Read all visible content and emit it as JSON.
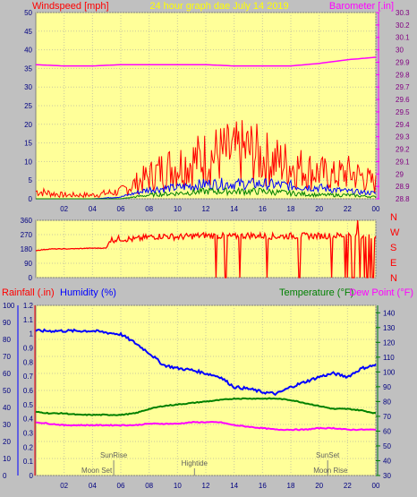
{
  "chart_data": [
    {
      "type": "line",
      "title": "24 hour graph dae   July 14 2019",
      "left_axis_label": "Windspeed [mph]",
      "right_axis_label": "Barometer [.in]",
      "x_tick_labels": [
        "02",
        "04",
        "06",
        "08",
        "10",
        "12",
        "14",
        "16",
        "18",
        "20",
        "22",
        "00"
      ],
      "x_tick_hours": [
        2,
        4,
        6,
        8,
        10,
        12,
        14,
        16,
        18,
        20,
        22,
        24
      ],
      "xlim": [
        0,
        24
      ],
      "ylim_left": [
        0,
        50
      ],
      "ylim_right": [
        28.8,
        30.3
      ],
      "y_left_ticks": [
        0,
        5,
        10,
        15,
        20,
        25,
        30,
        35,
        40,
        45,
        50
      ],
      "y_right_ticks": [
        "28.8",
        "28.9",
        "29",
        "29.1",
        "29.2",
        "29.3",
        "29.4",
        "29.5",
        "29.6",
        "29.7",
        "29.8",
        "29.9",
        "30",
        "30.1",
        "30.2",
        "30.3"
      ],
      "grid": true,
      "colors": {
        "gust": "#ff0000",
        "average": "#0000ff",
        "low": "#008000",
        "barometer": "#ff00ff"
      },
      "series": [
        {
          "key": "barometer",
          "axis": "right",
          "color": "#ff00ff",
          "x": [
            0,
            2,
            4,
            6,
            8,
            10,
            12,
            14,
            16,
            18,
            20,
            22,
            24
          ],
          "values": [
            29.88,
            29.87,
            29.87,
            29.88,
            29.88,
            29.88,
            29.88,
            29.87,
            29.87,
            29.87,
            29.89,
            29.92,
            29.94
          ]
        },
        {
          "key": "gust",
          "axis": "left",
          "color": "#ff0000",
          "x": [
            0,
            2,
            4,
            6,
            7,
            8,
            9,
            10,
            11,
            12,
            13,
            14,
            15,
            16,
            17,
            18,
            19,
            20,
            21,
            22,
            23,
            24
          ],
          "values": [
            2,
            1,
            1,
            2,
            4,
            6,
            8,
            9,
            10,
            11,
            12,
            12,
            13,
            11,
            10,
            9,
            8,
            7,
            6,
            7,
            6,
            4
          ]
        },
        {
          "key": "average",
          "axis": "left",
          "color": "#0000ff",
          "x": [
            0,
            2,
            4,
            6,
            7,
            8,
            10,
            12,
            14,
            16,
            18,
            20,
            22,
            24
          ],
          "values": [
            0,
            0,
            0,
            0.5,
            1.5,
            2.5,
            3,
            4,
            4,
            4,
            3.5,
            3,
            2,
            1.5
          ]
        },
        {
          "key": "low",
          "axis": "left",
          "color": "#008000",
          "x": [
            0,
            2,
            4,
            6,
            7,
            8,
            10,
            12,
            14,
            16,
            18,
            20,
            22,
            24
          ],
          "values": [
            0,
            0,
            0,
            0,
            0.5,
            1,
            1.5,
            2,
            2,
            2,
            1.5,
            1,
            1,
            0.5
          ]
        }
      ]
    },
    {
      "type": "line",
      "title": "",
      "y_left_ticks": [
        0,
        90,
        180,
        270,
        360
      ],
      "ylim": [
        0,
        360
      ],
      "compass_labels": [
        "N",
        "W",
        "S",
        "E",
        "N"
      ],
      "xlim": [
        0,
        24
      ],
      "series": [
        {
          "key": "wind_direction",
          "color": "#ff0000",
          "x": [
            0,
            1,
            2,
            3,
            4,
            5,
            5.2,
            6,
            7,
            8,
            9,
            10,
            11,
            12,
            13,
            14,
            15,
            16,
            17,
            18,
            19,
            20,
            21,
            22,
            23,
            24
          ],
          "values": [
            170,
            180,
            180,
            182,
            185,
            185,
            235,
            245,
            240,
            255,
            262,
            255,
            260,
            265,
            262,
            258,
            265,
            262,
            258,
            262,
            262,
            262,
            262,
            265,
            262,
            262
          ]
        }
      ],
      "drops_to_zero_at_hours": [
        12.7,
        13.4,
        14.4,
        16.3,
        18.6,
        20.9,
        22.3,
        22.9,
        23.4,
        23.8
      ]
    },
    {
      "type": "line",
      "title": "",
      "rain_label": "Rainfall (.in)",
      "humidity_label": "Humidity (%)",
      "temperature_label": "Temperature (°F)",
      "dewpoint_label": "Dew Point (°F)",
      "rain_ticks": [
        "0",
        "0.1",
        "0.2",
        "0.3",
        "0.4",
        "0.5",
        "0.6",
        "0.7",
        "0.8",
        "0.9",
        "1",
        "1.1",
        "1.2"
      ],
      "humidity_ticks": [
        "0",
        "10",
        "20",
        "30",
        "40",
        "50",
        "60",
        "70",
        "80",
        "90",
        "100"
      ],
      "temp_ticks": [
        "30",
        "40",
        "50",
        "60",
        "70",
        "80",
        "90",
        "100",
        "110",
        "120",
        "130",
        "140"
      ],
      "ylim_humidity": [
        0,
        100
      ],
      "ylim_temp": [
        30,
        145
      ],
      "xlim": [
        0,
        24
      ],
      "x_tick_labels": [
        "02",
        "04",
        "06",
        "08",
        "10",
        "12",
        "14",
        "16",
        "18",
        "20",
        "22",
        "00"
      ],
      "x_tick_hours": [
        2,
        4,
        6,
        8,
        10,
        12,
        14,
        16,
        18,
        20,
        22,
        24
      ],
      "events": [
        {
          "label": "SunRise",
          "hour": 5.5,
          "row": "upper"
        },
        {
          "label": "SunSet",
          "hour": 20.6,
          "row": "upper"
        },
        {
          "label": "Hightide",
          "hour": 11.2,
          "row": "middle"
        },
        {
          "label": "Moon Set",
          "hour": 4.3,
          "row": "lower"
        },
        {
          "label": "Moon Rise",
          "hour": 20.8,
          "row": "lower"
        }
      ],
      "series": [
        {
          "key": "humidity",
          "axis": "humidity",
          "color": "#0000ff",
          "x": [
            0,
            1,
            2,
            3,
            4,
            5,
            6,
            7,
            8,
            9,
            10,
            11,
            12,
            13,
            14,
            15,
            16,
            17,
            18,
            19,
            20,
            21,
            22,
            23,
            24
          ],
          "values": [
            85,
            85,
            85,
            85,
            85,
            84,
            83,
            78,
            72,
            65,
            63,
            62,
            60,
            58,
            52,
            51,
            49,
            48,
            52,
            55,
            58,
            60,
            58,
            63,
            65
          ]
        },
        {
          "key": "temperature",
          "axis": "temp",
          "color": "#008000",
          "x": [
            0,
            1,
            2,
            3,
            4,
            5,
            6,
            7,
            8,
            9,
            10,
            11,
            12,
            13,
            14,
            15,
            16,
            17,
            18,
            19,
            20,
            21,
            22,
            23,
            24
          ],
          "values": [
            73,
            72,
            72,
            71,
            71,
            71,
            71,
            72,
            75,
            77,
            78,
            79,
            80,
            81,
            82,
            82,
            82,
            82,
            81,
            79,
            77,
            75,
            75,
            74,
            72
          ]
        },
        {
          "key": "dewpoint",
          "axis": "temp",
          "color": "#ff00ff",
          "x": [
            0,
            1,
            2,
            3,
            4,
            5,
            6,
            7,
            8,
            9,
            10,
            11,
            12,
            13,
            14,
            15,
            16,
            17,
            18,
            19,
            20,
            21,
            22,
            23,
            24
          ],
          "values": [
            66,
            65,
            64,
            64,
            64,
            64,
            64,
            64,
            65,
            65,
            65,
            66,
            66,
            66,
            64,
            63,
            62,
            61,
            61,
            61,
            62,
            62,
            61,
            61,
            61
          ]
        },
        {
          "key": "rainfall",
          "axis": "rain",
          "color": "#ff0000",
          "x": [
            0,
            24
          ],
          "values": [
            0,
            0
          ]
        }
      ]
    }
  ]
}
